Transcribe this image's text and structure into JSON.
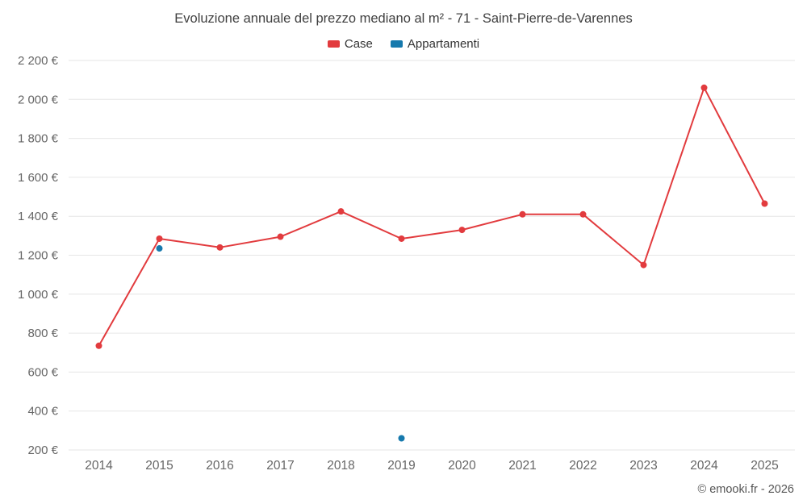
{
  "chart_data": {
    "type": "line",
    "title": "Evoluzione annuale del prezzo mediano al m² - 71 - Saint-Pierre-de-Varennes",
    "x": [
      "2014",
      "2015",
      "2016",
      "2017",
      "2018",
      "2019",
      "2020",
      "2021",
      "2022",
      "2023",
      "2024",
      "2025"
    ],
    "series": [
      {
        "name": "Case",
        "color": "#e23b3e",
        "style": "line-with-points",
        "values": [
          735,
          1285,
          1240,
          1295,
          1425,
          1285,
          1330,
          1410,
          1410,
          1150,
          2060,
          1465
        ]
      },
      {
        "name": "Appartamenti",
        "color": "#1679ad",
        "style": "points",
        "values": [
          null,
          1235,
          null,
          null,
          null,
          260,
          null,
          null,
          null,
          null,
          null,
          null
        ]
      }
    ],
    "ylim": [
      200,
      2200
    ],
    "ytick_step": 200,
    "y_suffix": " €",
    "grid": "horizontal",
    "legend_position": "top",
    "axis_label_color": "#666666",
    "grid_color": "#e6e6e6",
    "watermark": "© emooki.fr - 2026"
  }
}
